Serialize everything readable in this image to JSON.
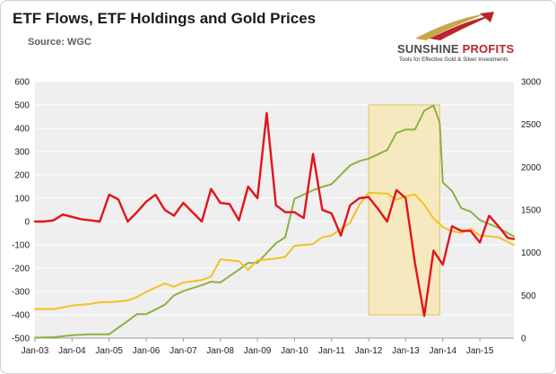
{
  "header": {
    "title": "ETF Flows, ETF Holdings and Gold Prices",
    "source": "Source: WGC"
  },
  "logo": {
    "name_part1": "SUNSHINE ",
    "name_part2": "PROFITS",
    "tagline": "Tools for Effective Gold & Silver Investments"
  },
  "colors": {
    "flows": "#e3131b",
    "holdings": "#8db144",
    "gold_price": "#f5c021",
    "highlight_fill": "#f7e7b6",
    "highlight_stroke": "#e6c25c",
    "plot_bg": "#efefef",
    "grid": "#ffffff",
    "logo_red": "#b8252d"
  },
  "chart_data": {
    "type": "line",
    "x_tick_labels": [
      "Jan-03",
      "Jan-04",
      "Jan-05",
      "Jan-06",
      "Jan-07",
      "Jan-08",
      "Jan-09",
      "Jan-10",
      "Jan-11",
      "Jan-12",
      "Jan-13",
      "Jan-14",
      "Jan-15"
    ],
    "x_range": [
      "2003-01",
      "2015-12"
    ],
    "left_axis": {
      "ticks": [
        600,
        500,
        400,
        300,
        200,
        100,
        0,
        -100,
        -200,
        -300,
        -400,
        -500
      ],
      "range": [
        -500,
        600
      ]
    },
    "right_axis": {
      "ticks": [
        3000,
        2500,
        2000,
        1500,
        1000,
        500,
        0
      ],
      "range": [
        0,
        3000
      ]
    },
    "highlight_period": {
      "from": "2012-01",
      "to": "2013-12",
      "y_top": 500,
      "y_bottom": -400
    },
    "grid": true,
    "legend": "none",
    "series": [
      {
        "key": "flows",
        "axis": "left",
        "points": [
          [
            "2003-01",
            0
          ],
          [
            "2003-04",
            0
          ],
          [
            "2003-07",
            5
          ],
          [
            "2003-10",
            30
          ],
          [
            "2004-01",
            20
          ],
          [
            "2004-04",
            10
          ],
          [
            "2004-07",
            5
          ],
          [
            "2004-10",
            0
          ],
          [
            "2005-01",
            115
          ],
          [
            "2005-04",
            95
          ],
          [
            "2005-07",
            0
          ],
          [
            "2005-10",
            40
          ],
          [
            "2006-01",
            85
          ],
          [
            "2006-04",
            115
          ],
          [
            "2006-07",
            50
          ],
          [
            "2006-10",
            25
          ],
          [
            "2007-01",
            80
          ],
          [
            "2007-04",
            40
          ],
          [
            "2007-07",
            0
          ],
          [
            "2007-10",
            140
          ],
          [
            "2008-01",
            80
          ],
          [
            "2008-04",
            75
          ],
          [
            "2008-07",
            5
          ],
          [
            "2008-10",
            150
          ],
          [
            "2009-01",
            100
          ],
          [
            "2009-04",
            465
          ],
          [
            "2009-07",
            70
          ],
          [
            "2009-10",
            40
          ],
          [
            "2010-01",
            40
          ],
          [
            "2010-04",
            15
          ],
          [
            "2010-07",
            290
          ],
          [
            "2010-10",
            50
          ],
          [
            "2011-01",
            35
          ],
          [
            "2011-04",
            -60
          ],
          [
            "2011-07",
            70
          ],
          [
            "2011-10",
            100
          ],
          [
            "2012-01",
            105
          ],
          [
            "2012-04",
            55
          ],
          [
            "2012-07",
            0
          ],
          [
            "2012-10",
            135
          ],
          [
            "2013-01",
            100
          ],
          [
            "2013-04",
            -180
          ],
          [
            "2013-07",
            -405
          ],
          [
            "2013-10",
            -125
          ],
          [
            "2014-01",
            -185
          ],
          [
            "2014-04",
            -20
          ],
          [
            "2014-07",
            -40
          ],
          [
            "2014-10",
            -40
          ],
          [
            "2015-01",
            -90
          ],
          [
            "2015-04",
            25
          ],
          [
            "2015-07",
            -20
          ],
          [
            "2015-10",
            -70
          ],
          [
            "2015-12",
            -75
          ]
        ]
      },
      {
        "key": "holdings",
        "axis": "right",
        "points": [
          [
            "2003-01",
            5
          ],
          [
            "2003-07",
            10
          ],
          [
            "2004-01",
            35
          ],
          [
            "2004-07",
            45
          ],
          [
            "2005-01",
            45
          ],
          [
            "2005-07",
            200
          ],
          [
            "2005-10",
            280
          ],
          [
            "2006-01",
            280
          ],
          [
            "2006-07",
            390
          ],
          [
            "2006-10",
            500
          ],
          [
            "2007-01",
            550
          ],
          [
            "2007-07",
            620
          ],
          [
            "2007-10",
            660
          ],
          [
            "2008-01",
            650
          ],
          [
            "2008-07",
            800
          ],
          [
            "2008-10",
            880
          ],
          [
            "2009-01",
            880
          ],
          [
            "2009-07",
            1110
          ],
          [
            "2009-10",
            1180
          ],
          [
            "2010-01",
            1630
          ],
          [
            "2010-07",
            1730
          ],
          [
            "2010-10",
            1770
          ],
          [
            "2011-01",
            1800
          ],
          [
            "2011-07",
            2020
          ],
          [
            "2011-10",
            2070
          ],
          [
            "2012-01",
            2100
          ],
          [
            "2012-07",
            2200
          ],
          [
            "2012-10",
            2400
          ],
          [
            "2013-01",
            2440
          ],
          [
            "2013-04",
            2440
          ],
          [
            "2013-07",
            2660
          ],
          [
            "2013-10",
            2720
          ],
          [
            "2013-12",
            2520
          ],
          [
            "2014-01",
            1820
          ],
          [
            "2014-04",
            1720
          ],
          [
            "2014-07",
            1520
          ],
          [
            "2014-10",
            1480
          ],
          [
            "2015-01",
            1380
          ],
          [
            "2015-07",
            1290
          ],
          [
            "2015-12",
            1190
          ]
        ]
      },
      {
        "key": "gold_price",
        "axis": "right",
        "points": [
          [
            "2003-01",
            340
          ],
          [
            "2003-07",
            340
          ],
          [
            "2004-01",
            380
          ],
          [
            "2004-07",
            400
          ],
          [
            "2004-10",
            420
          ],
          [
            "2005-01",
            420
          ],
          [
            "2005-07",
            440
          ],
          [
            "2005-10",
            480
          ],
          [
            "2006-01",
            540
          ],
          [
            "2006-07",
            640
          ],
          [
            "2006-10",
            600
          ],
          [
            "2007-01",
            650
          ],
          [
            "2007-07",
            680
          ],
          [
            "2007-10",
            720
          ],
          [
            "2008-01",
            920
          ],
          [
            "2008-07",
            900
          ],
          [
            "2008-10",
            800
          ],
          [
            "2009-01",
            910
          ],
          [
            "2009-07",
            930
          ],
          [
            "2009-10",
            950
          ],
          [
            "2010-01",
            1080
          ],
          [
            "2010-07",
            1100
          ],
          [
            "2010-10",
            1180
          ],
          [
            "2011-01",
            1200
          ],
          [
            "2011-07",
            1350
          ],
          [
            "2011-10",
            1560
          ],
          [
            "2012-01",
            1700
          ],
          [
            "2012-07",
            1690
          ],
          [
            "2012-10",
            1620
          ],
          [
            "2013-01",
            1660
          ],
          [
            "2013-04",
            1680
          ],
          [
            "2013-07",
            1560
          ],
          [
            "2013-10",
            1400
          ],
          [
            "2014-01",
            1300
          ],
          [
            "2014-04",
            1250
          ],
          [
            "2014-07",
            1230
          ],
          [
            "2014-10",
            1280
          ],
          [
            "2015-01",
            1200
          ],
          [
            "2015-07",
            1180
          ],
          [
            "2015-12",
            1090
          ]
        ]
      }
    ]
  }
}
